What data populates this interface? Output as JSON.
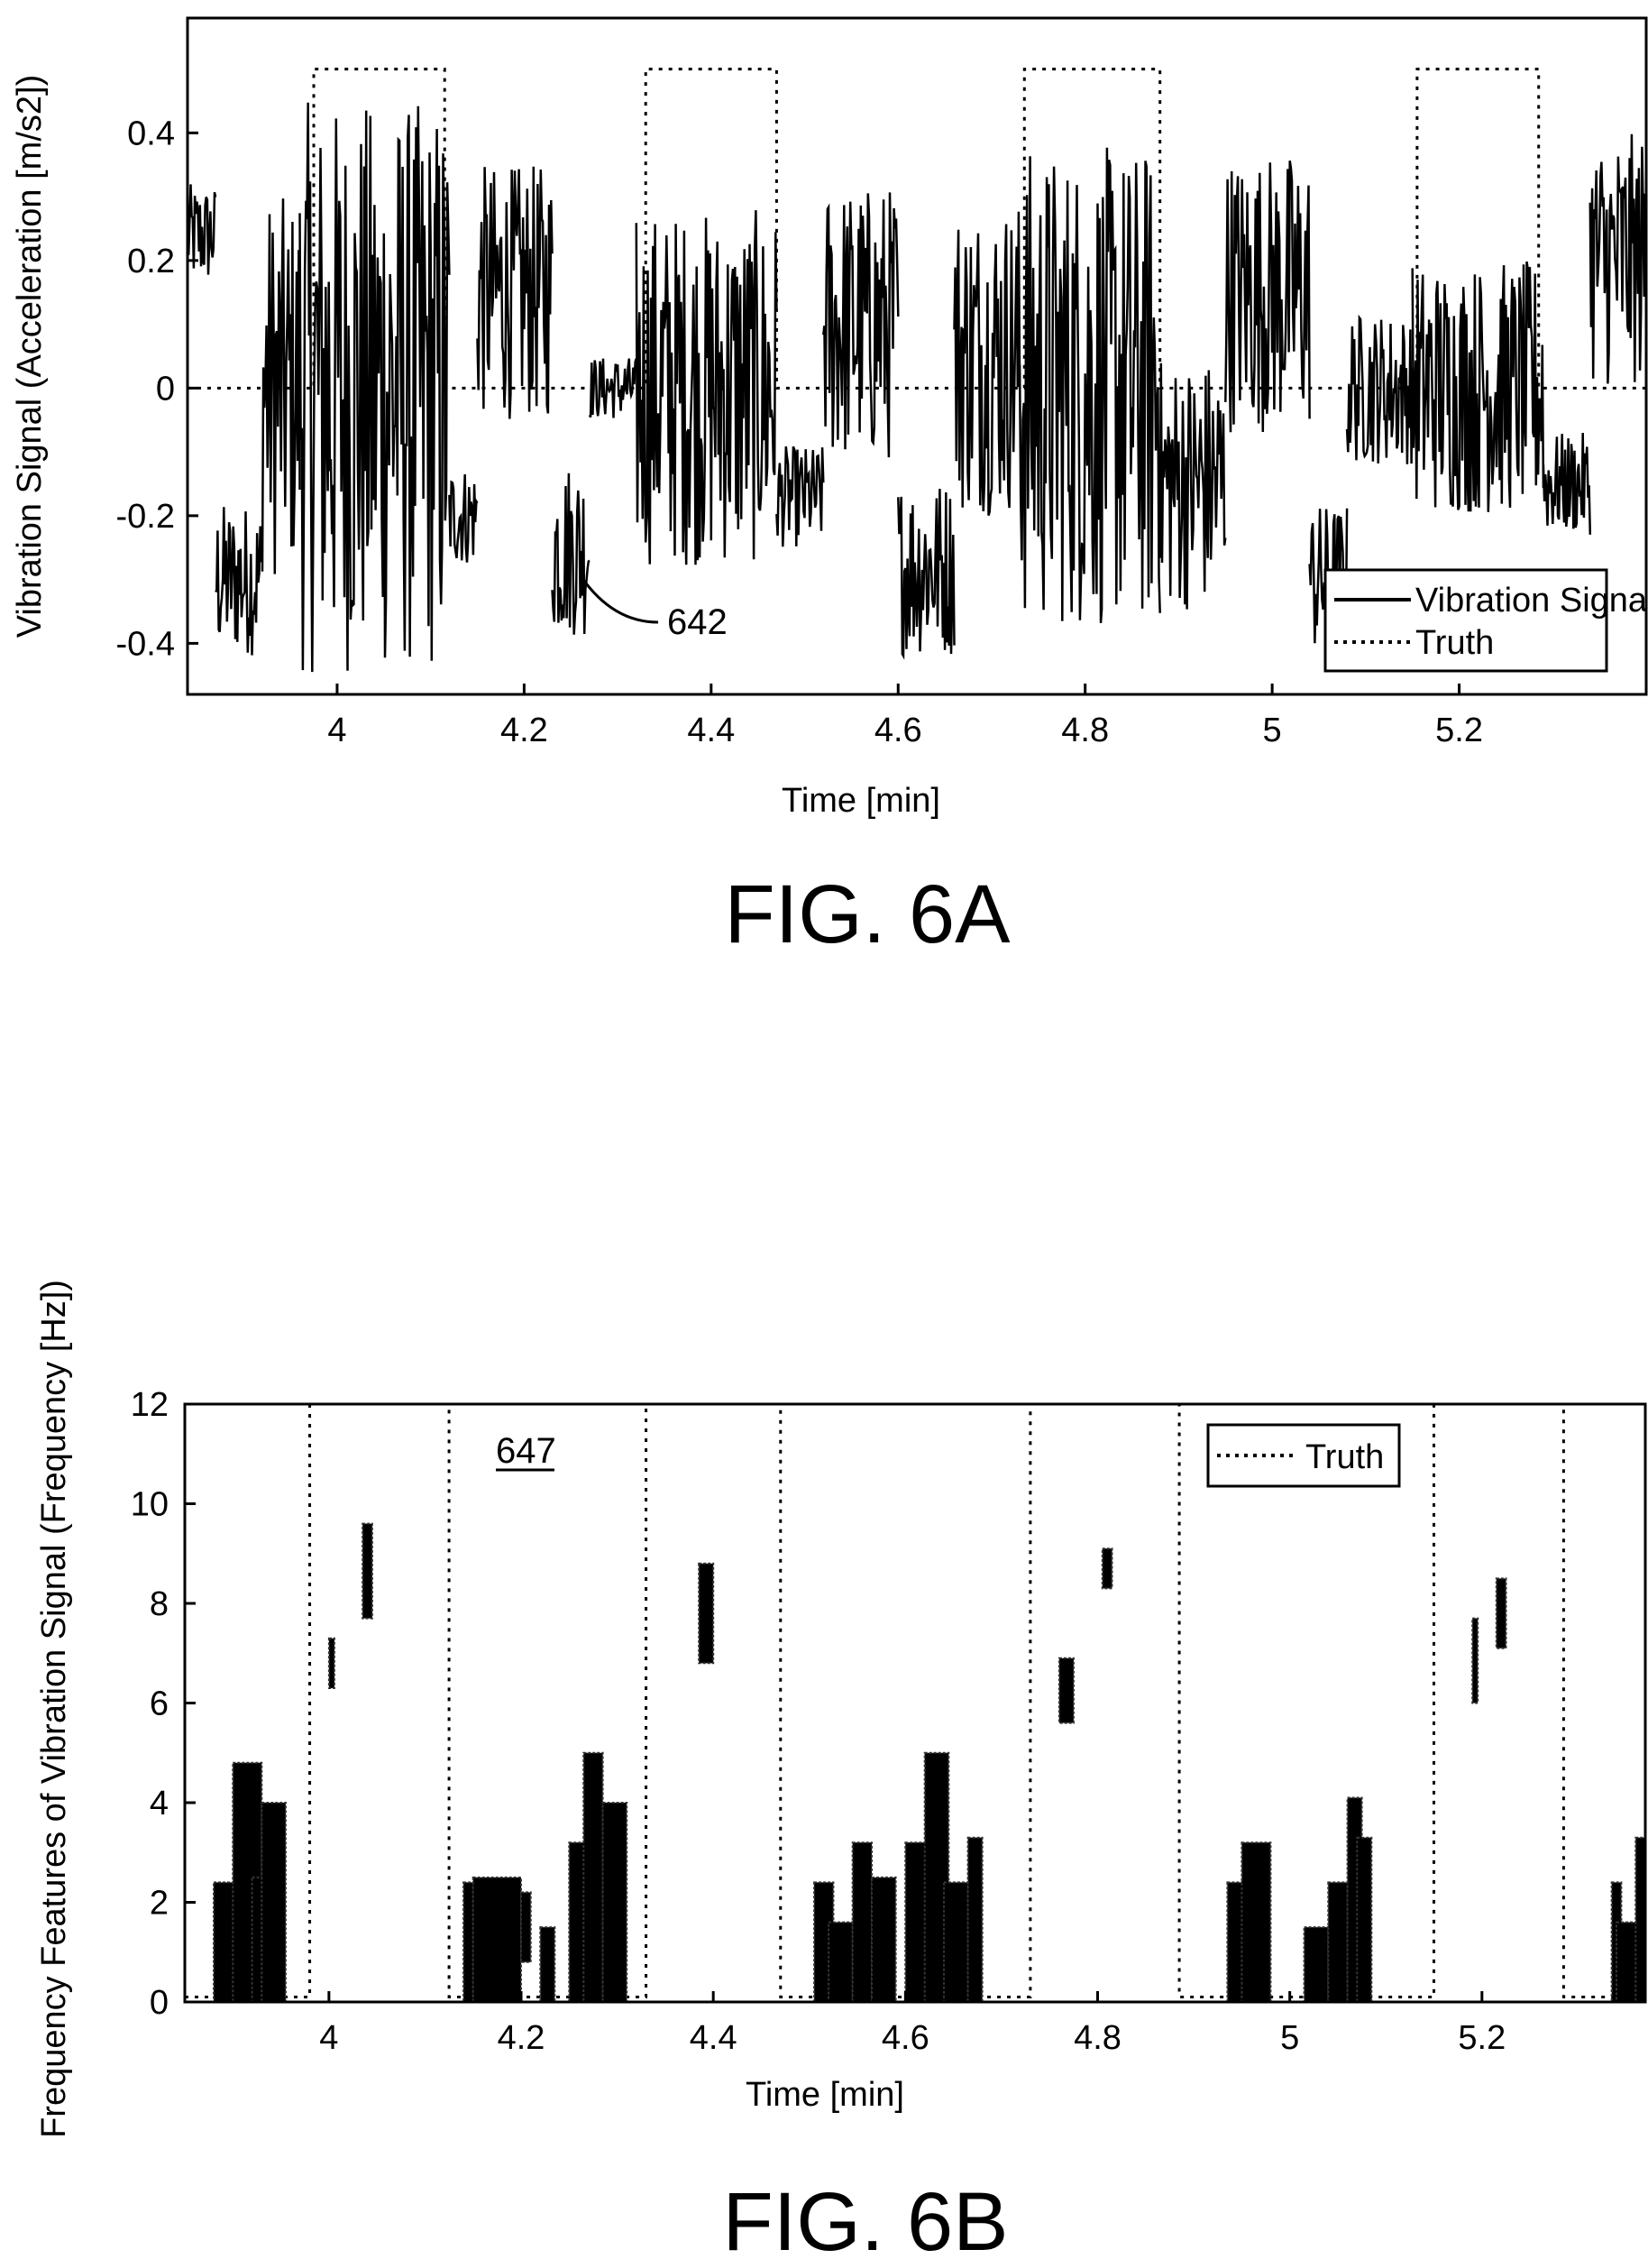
{
  "chart_data": [
    {
      "type": "line",
      "figure_label": "FIG. 6A",
      "xlabel": "Time [min]",
      "ylabel": "Vibration Signal (Acceleration [m/s2])",
      "xlim": [
        3.84,
        5.4
      ],
      "ylim": [
        -0.48,
        0.58
      ],
      "x_ticks": [
        "4",
        "4.2",
        "4.4",
        "4.6",
        "4.8",
        "5",
        "5.2"
      ],
      "y_ticks": [
        "0.4",
        "0.2",
        "0",
        "-0.2",
        "-0.4"
      ],
      "legend": {
        "placement": "bottom-right",
        "entries": [
          "Vibration Signal",
          "Truth"
        ]
      },
      "callout": "642",
      "truth_intervals": [
        [
          3.975,
          4.115
        ],
        [
          4.33,
          4.47
        ],
        [
          4.735,
          4.88
        ],
        [
          5.155,
          5.285
        ]
      ],
      "truth_high": 0.5,
      "truth_low": 0.0,
      "signal_segments": [
        {
          "x0": 3.84,
          "x1": 3.87,
          "base": 0.24,
          "amp": 0.08
        },
        {
          "x0": 3.87,
          "x1": 3.92,
          "base": -0.3,
          "amp": 0.12
        },
        {
          "x0": 3.92,
          "x1": 3.96,
          "base": 0.0,
          "amp": 0.3
        },
        {
          "x0": 3.96,
          "x1": 4.12,
          "base": 0.0,
          "amp": 0.45
        },
        {
          "x0": 4.12,
          "x1": 4.15,
          "base": -0.2,
          "amp": 0.08
        },
        {
          "x0": 4.15,
          "x1": 4.23,
          "base": 0.15,
          "amp": 0.2
        },
        {
          "x0": 4.23,
          "x1": 4.27,
          "base": -0.25,
          "amp": 0.14
        },
        {
          "x0": 4.27,
          "x1": 4.32,
          "base": 0.0,
          "amp": 0.05
        },
        {
          "x0": 4.32,
          "x1": 4.47,
          "base": 0.0,
          "amp": 0.28
        },
        {
          "x0": 4.47,
          "x1": 4.52,
          "base": -0.17,
          "amp": 0.08
        },
        {
          "x0": 4.52,
          "x1": 4.6,
          "base": 0.1,
          "amp": 0.22
        },
        {
          "x0": 4.6,
          "x1": 4.66,
          "base": -0.28,
          "amp": 0.14
        },
        {
          "x0": 4.66,
          "x1": 4.73,
          "base": 0.05,
          "amp": 0.25
        },
        {
          "x0": 4.73,
          "x1": 4.88,
          "base": 0.0,
          "amp": 0.38
        },
        {
          "x0": 4.88,
          "x1": 4.95,
          "base": -0.15,
          "amp": 0.2
        },
        {
          "x0": 4.95,
          "x1": 5.04,
          "base": 0.15,
          "amp": 0.22
        },
        {
          "x0": 5.04,
          "x1": 5.08,
          "base": -0.3,
          "amp": 0.12
        },
        {
          "x0": 5.08,
          "x1": 5.15,
          "base": 0.0,
          "amp": 0.12
        },
        {
          "x0": 5.15,
          "x1": 5.29,
          "base": 0.0,
          "amp": 0.2
        },
        {
          "x0": 5.29,
          "x1": 5.34,
          "base": -0.15,
          "amp": 0.08
        },
        {
          "x0": 5.34,
          "x1": 5.4,
          "base": 0.2,
          "amp": 0.2
        }
      ]
    },
    {
      "type": "scatter",
      "figure_label": "FIG. 6B",
      "xlabel": "Time [min]",
      "ylabel": "Frequency Features of Vibration Signal (Frequency [Hz])",
      "xlim": [
        3.85,
        5.37
      ],
      "ylim": [
        0,
        12
      ],
      "x_ticks": [
        "4",
        "4.2",
        "4.4",
        "4.6",
        "4.8",
        "5",
        "5.2"
      ],
      "y_ticks": [
        "12",
        "10",
        "8",
        "6",
        "4",
        "2",
        "0"
      ],
      "legend": {
        "placement": "top-right",
        "entries": [
          "Truth"
        ]
      },
      "callout": "647",
      "truth_intervals": [
        [
          3.98,
          4.125
        ],
        [
          4.33,
          4.47
        ],
        [
          4.73,
          4.885
        ],
        [
          5.15,
          5.285
        ]
      ],
      "truth_high": 12,
      "truth_low": 0.1,
      "clusters": [
        {
          "x0": 3.88,
          "x1": 3.91,
          "y0": 0,
          "y1": 2.4
        },
        {
          "x0": 3.9,
          "x1": 3.93,
          "y0": 0,
          "y1": 4.8
        },
        {
          "x0": 3.92,
          "x1": 3.94,
          "y0": 0,
          "y1": 2.5
        },
        {
          "x0": 3.93,
          "x1": 3.955,
          "y0": 0,
          "y1": 4.0
        },
        {
          "x0": 4.0,
          "x1": 4.005,
          "y0": 6.3,
          "y1": 7.3
        },
        {
          "x0": 4.035,
          "x1": 4.045,
          "y0": 7.7,
          "y1": 9.6
        },
        {
          "x0": 4.14,
          "x1": 4.15,
          "y0": 0,
          "y1": 2.4
        },
        {
          "x0": 4.15,
          "x1": 4.2,
          "y0": 0,
          "y1": 2.5
        },
        {
          "x0": 4.2,
          "x1": 4.21,
          "y0": 0.8,
          "y1": 2.2
        },
        {
          "x0": 4.22,
          "x1": 4.235,
          "y0": 0,
          "y1": 1.5
        },
        {
          "x0": 4.25,
          "x1": 4.27,
          "y0": 0,
          "y1": 3.2
        },
        {
          "x0": 4.265,
          "x1": 4.285,
          "y0": 0,
          "y1": 5.0
        },
        {
          "x0": 4.285,
          "x1": 4.31,
          "y0": 0,
          "y1": 4.0
        },
        {
          "x0": 4.385,
          "x1": 4.4,
          "y0": 6.8,
          "y1": 8.8
        },
        {
          "x0": 4.505,
          "x1": 4.525,
          "y0": 0,
          "y1": 2.4
        },
        {
          "x0": 4.52,
          "x1": 4.545,
          "y0": 0,
          "y1": 1.6
        },
        {
          "x0": 4.545,
          "x1": 4.565,
          "y0": 0,
          "y1": 3.2
        },
        {
          "x0": 4.565,
          "x1": 4.59,
          "y0": 0,
          "y1": 2.5
        },
        {
          "x0": 4.6,
          "x1": 4.625,
          "y0": 0,
          "y1": 3.2
        },
        {
          "x0": 4.62,
          "x1": 4.645,
          "y0": 0,
          "y1": 5.0
        },
        {
          "x0": 4.64,
          "x1": 4.665,
          "y0": 0,
          "y1": 2.4
        },
        {
          "x0": 4.665,
          "x1": 4.68,
          "y0": 0,
          "y1": 3.3
        },
        {
          "x0": 4.76,
          "x1": 4.775,
          "y0": 5.6,
          "y1": 6.9
        },
        {
          "x0": 4.805,
          "x1": 4.815,
          "y0": 8.3,
          "y1": 9.1
        },
        {
          "x0": 4.935,
          "x1": 4.955,
          "y0": 0,
          "y1": 2.4
        },
        {
          "x0": 4.95,
          "x1": 4.98,
          "y0": 0,
          "y1": 3.2
        },
        {
          "x0": 5.015,
          "x1": 5.04,
          "y0": 0,
          "y1": 1.5
        },
        {
          "x0": 5.04,
          "x1": 5.06,
          "y0": 0,
          "y1": 2.4
        },
        {
          "x0": 5.06,
          "x1": 5.075,
          "y0": 0,
          "y1": 4.1
        },
        {
          "x0": 5.07,
          "x1": 5.085,
          "y0": 0,
          "y1": 3.3
        },
        {
          "x0": 5.19,
          "x1": 5.195,
          "y0": 6.0,
          "y1": 7.7
        },
        {
          "x0": 5.215,
          "x1": 5.225,
          "y0": 7.1,
          "y1": 8.5
        },
        {
          "x0": 5.335,
          "x1": 5.345,
          "y0": 0,
          "y1": 2.4
        },
        {
          "x0": 5.34,
          "x1": 5.37,
          "y0": 0,
          "y1": 1.6
        },
        {
          "x0": 5.36,
          "x1": 5.37,
          "y0": 0,
          "y1": 3.3
        }
      ]
    }
  ]
}
